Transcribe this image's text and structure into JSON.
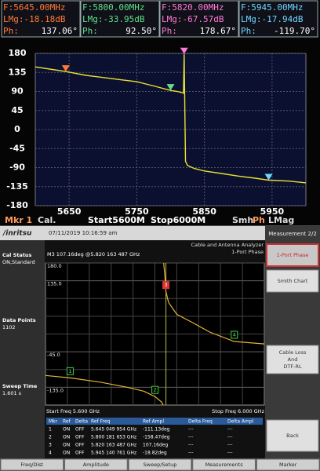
{
  "top": {
    "markers": [
      {
        "freq": "F:5645.00MHz",
        "lmag": "LMg:-18.18dB",
        "ph_label": "Ph:",
        "ph": "137.06°",
        "color": "#ff7a3a",
        "x": 5645,
        "y": 137.06
      },
      {
        "freq": "F:5800.00MHz",
        "lmag": "LMg:-33.95dB",
        "ph_label": "Ph:",
        "ph": "92.50°",
        "color": "#5fe08a",
        "x": 5800,
        "y": 92.5
      },
      {
        "freq": "F:5820.00MHz",
        "lmag": "LMg:-67.57dB",
        "ph_label": "Ph:",
        "ph": "178.67°",
        "color": "#ff7ad8",
        "x": 5820,
        "y": 178.67
      },
      {
        "freq": "F:5945.00MHz",
        "lmag": "LMg:-17.94dB",
        "ph_label": "Ph:",
        "ph": "-119.70°",
        "color": "#6fd6ff",
        "x": 5945,
        "y": -119.7
      }
    ],
    "plot": {
      "xlim": [
        5600,
        6000
      ],
      "xticks": [
        5650,
        5750,
        5850,
        5950
      ],
      "ylim": [
        -180,
        180
      ],
      "yticks": [
        180,
        135,
        90,
        45,
        0,
        -45,
        -90,
        -135,
        -180
      ],
      "grid": true,
      "color": "#e8e030",
      "trace": {
        "x": [
          5600,
          5625,
          5645,
          5675,
          5700,
          5725,
          5750,
          5775,
          5800,
          5810,
          5815,
          5819,
          5820,
          5821,
          5822,
          5825,
          5835,
          5850,
          5875,
          5900,
          5925,
          5945,
          5975,
          6000
        ],
        "y": [
          148,
          142,
          137.06,
          128,
          123,
          118,
          113,
          103,
          92.5,
          90,
          88,
          86,
          178.67,
          60,
          -75,
          -85,
          -92,
          -98,
          -104,
          -110,
          -115,
          -119.7,
          -122,
          -126
        ]
      }
    },
    "status": [
      "Mkr 1",
      "Cal.",
      "Start5600M",
      "Stop6000M",
      "Smh",
      "Ph",
      "LMag"
    ]
  },
  "bottom": {
    "brand": "/inritsu",
    "datetime": "07/11/2019 10:16:59 am",
    "app": "Cable and Antenna Analyzer",
    "mode": "1-Port Phase",
    "left": [
      {
        "label": "Cal Status",
        "value": "ON,Standard"
      },
      {
        "label": "Data Points",
        "value": "1102"
      },
      {
        "label": "Sweep Time",
        "value": "1.601 s"
      }
    ],
    "readout": "M3 107.16deg @5.820 163 487 GHz",
    "plot": {
      "xlim": [
        5.6,
        6.0
      ],
      "ylim": [
        -180,
        180
      ],
      "yticks": [
        {
          "value": 180,
          "label": "180.0"
        },
        {
          "value": 135,
          "label": "135.0"
        },
        {
          "value": -45,
          "label": "-45.0"
        },
        {
          "value": -135,
          "label": "-135.0"
        }
      ],
      "color": "#e6b43a",
      "trace": {
        "x": [
          5.6,
          5.645049954,
          5.7,
          5.75,
          5.78,
          5.800181653,
          5.812,
          5.815,
          5.8155,
          5.816,
          5.818,
          5.820163487,
          5.825,
          5.84,
          5.87,
          5.9,
          5.945140761,
          6.0
        ],
        "y": [
          -105,
          -111.13,
          -122,
          -135,
          -145,
          -158.47,
          -172,
          -180,
          null,
          180,
          150,
          107.16,
          80,
          50,
          28,
          5,
          -18.82,
          -25
        ]
      },
      "markers": [
        {
          "label": "1",
          "x": 5.645049954,
          "y": -111.13
        },
        {
          "label": "2",
          "x": 5.800181653,
          "y": -158.47
        },
        {
          "label": "3",
          "x": 5.820163487,
          "y": 107.16
        },
        {
          "label": "4",
          "x": 5.945140761,
          "y": -18.82
        }
      ]
    },
    "start": "Start Freq 5.600 GHz",
    "stop": "Stop Freq 6.000 GHz",
    "table": {
      "header": [
        "Mkr",
        "Ref",
        "Delta",
        "Ref Freq",
        "Ref Ampl",
        "Delta Freq",
        "Delta Ampl"
      ],
      "rows": [
        [
          "1",
          "ON",
          "OFF",
          "5.645 049 954 GHz",
          "-111.13deg",
          "---",
          "---"
        ],
        [
          "2",
          "ON",
          "OFF",
          "5.800 181 653 GHz",
          "-158.47deg",
          "---",
          "---"
        ],
        [
          "3",
          "ON",
          "OFF",
          "5.820 163 487 GHz",
          "107.16deg",
          "---",
          "---"
        ],
        [
          "4",
          "ON",
          "OFF",
          "5.945 140 761 GHz",
          "-18.82deg",
          "---",
          "---"
        ]
      ]
    },
    "menu_title": "Measurement 2/2",
    "buttons": [
      [
        "1-Port Phase"
      ],
      [
        "Smith Chart"
      ],
      [
        "Cable Loss",
        "And",
        "DTF-RL"
      ],
      [
        "Back"
      ]
    ],
    "tabs": [
      "Freq/Dist",
      "Amplitude",
      "Sweep/Setup",
      "Measurements",
      "Marker"
    ]
  }
}
